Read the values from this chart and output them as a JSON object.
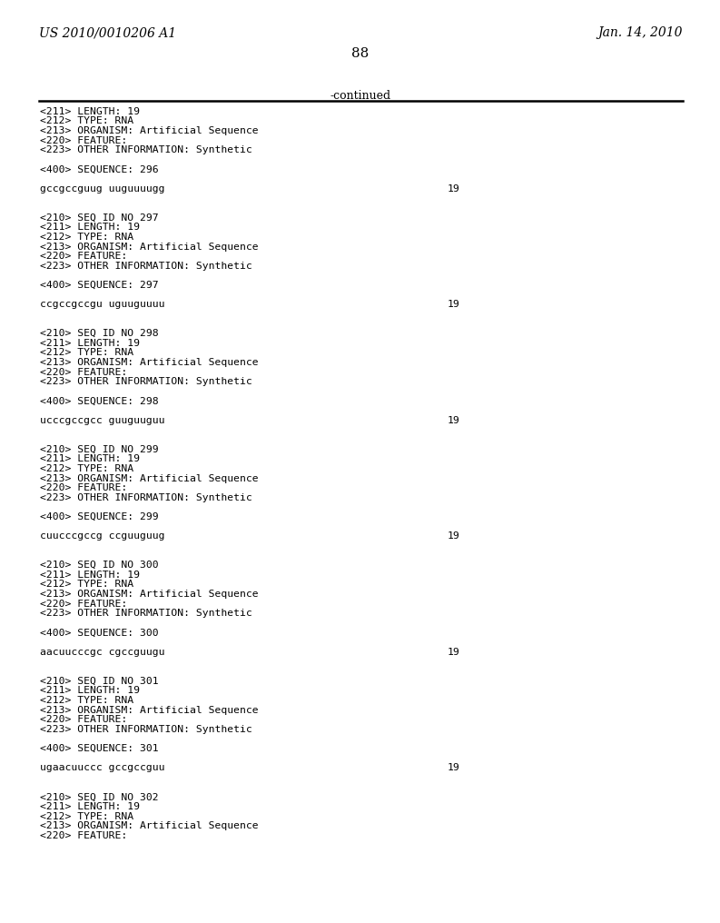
{
  "header_left": "US 2010/0010206 A1",
  "header_right": "Jan. 14, 2010",
  "page_number": "88",
  "continued_text": "-continued",
  "background_color": "#ffffff",
  "text_color": "#000000",
  "body_lines": [
    [
      "text",
      "<211> LENGTH: 19"
    ],
    [
      "text",
      "<212> TYPE: RNA"
    ],
    [
      "text",
      "<213> ORGANISM: Artificial Sequence"
    ],
    [
      "text",
      "<220> FEATURE:"
    ],
    [
      "text",
      "<223> OTHER INFORMATION: Synthetic"
    ],
    [
      "blank",
      ""
    ],
    [
      "text",
      "<400> SEQUENCE: 296"
    ],
    [
      "blank",
      ""
    ],
    [
      "seq",
      "gccgccguug uuguuuugg",
      "19"
    ],
    [
      "blank",
      ""
    ],
    [
      "blank",
      ""
    ],
    [
      "text",
      "<210> SEQ ID NO 297"
    ],
    [
      "text",
      "<211> LENGTH: 19"
    ],
    [
      "text",
      "<212> TYPE: RNA"
    ],
    [
      "text",
      "<213> ORGANISM: Artificial Sequence"
    ],
    [
      "text",
      "<220> FEATURE:"
    ],
    [
      "text",
      "<223> OTHER INFORMATION: Synthetic"
    ],
    [
      "blank",
      ""
    ],
    [
      "text",
      "<400> SEQUENCE: 297"
    ],
    [
      "blank",
      ""
    ],
    [
      "seq",
      "ccgccgccgu uguuguuuu",
      "19"
    ],
    [
      "blank",
      ""
    ],
    [
      "blank",
      ""
    ],
    [
      "text",
      "<210> SEQ ID NO 298"
    ],
    [
      "text",
      "<211> LENGTH: 19"
    ],
    [
      "text",
      "<212> TYPE: RNA"
    ],
    [
      "text",
      "<213> ORGANISM: Artificial Sequence"
    ],
    [
      "text",
      "<220> FEATURE:"
    ],
    [
      "text",
      "<223> OTHER INFORMATION: Synthetic"
    ],
    [
      "blank",
      ""
    ],
    [
      "text",
      "<400> SEQUENCE: 298"
    ],
    [
      "blank",
      ""
    ],
    [
      "seq",
      "ucccgccgcc guuguuguu",
      "19"
    ],
    [
      "blank",
      ""
    ],
    [
      "blank",
      ""
    ],
    [
      "text",
      "<210> SEQ ID NO 299"
    ],
    [
      "text",
      "<211> LENGTH: 19"
    ],
    [
      "text",
      "<212> TYPE: RNA"
    ],
    [
      "text",
      "<213> ORGANISM: Artificial Sequence"
    ],
    [
      "text",
      "<220> FEATURE:"
    ],
    [
      "text",
      "<223> OTHER INFORMATION: Synthetic"
    ],
    [
      "blank",
      ""
    ],
    [
      "text",
      "<400> SEQUENCE: 299"
    ],
    [
      "blank",
      ""
    ],
    [
      "seq",
      "cuucccgccg ccguuguug",
      "19"
    ],
    [
      "blank",
      ""
    ],
    [
      "blank",
      ""
    ],
    [
      "text",
      "<210> SEQ ID NO 300"
    ],
    [
      "text",
      "<211> LENGTH: 19"
    ],
    [
      "text",
      "<212> TYPE: RNA"
    ],
    [
      "text",
      "<213> ORGANISM: Artificial Sequence"
    ],
    [
      "text",
      "<220> FEATURE:"
    ],
    [
      "text",
      "<223> OTHER INFORMATION: Synthetic"
    ],
    [
      "blank",
      ""
    ],
    [
      "text",
      "<400> SEQUENCE: 300"
    ],
    [
      "blank",
      ""
    ],
    [
      "seq",
      "aacuucccgc cgccguugu",
      "19"
    ],
    [
      "blank",
      ""
    ],
    [
      "blank",
      ""
    ],
    [
      "text",
      "<210> SEQ ID NO 301"
    ],
    [
      "text",
      "<211> LENGTH: 19"
    ],
    [
      "text",
      "<212> TYPE: RNA"
    ],
    [
      "text",
      "<213> ORGANISM: Artificial Sequence"
    ],
    [
      "text",
      "<220> FEATURE:"
    ],
    [
      "text",
      "<223> OTHER INFORMATION: Synthetic"
    ],
    [
      "blank",
      ""
    ],
    [
      "text",
      "<400> SEQUENCE: 301"
    ],
    [
      "blank",
      ""
    ],
    [
      "seq",
      "ugaacuuccc gccgccguu",
      "19"
    ],
    [
      "blank",
      ""
    ],
    [
      "blank",
      ""
    ],
    [
      "text",
      "<210> SEQ ID NO 302"
    ],
    [
      "text",
      "<211> LENGTH: 19"
    ],
    [
      "text",
      "<212> TYPE: RNA"
    ],
    [
      "text",
      "<213> ORGANISM: Artificial Sequence"
    ],
    [
      "text",
      "<220> FEATURE:"
    ]
  ]
}
